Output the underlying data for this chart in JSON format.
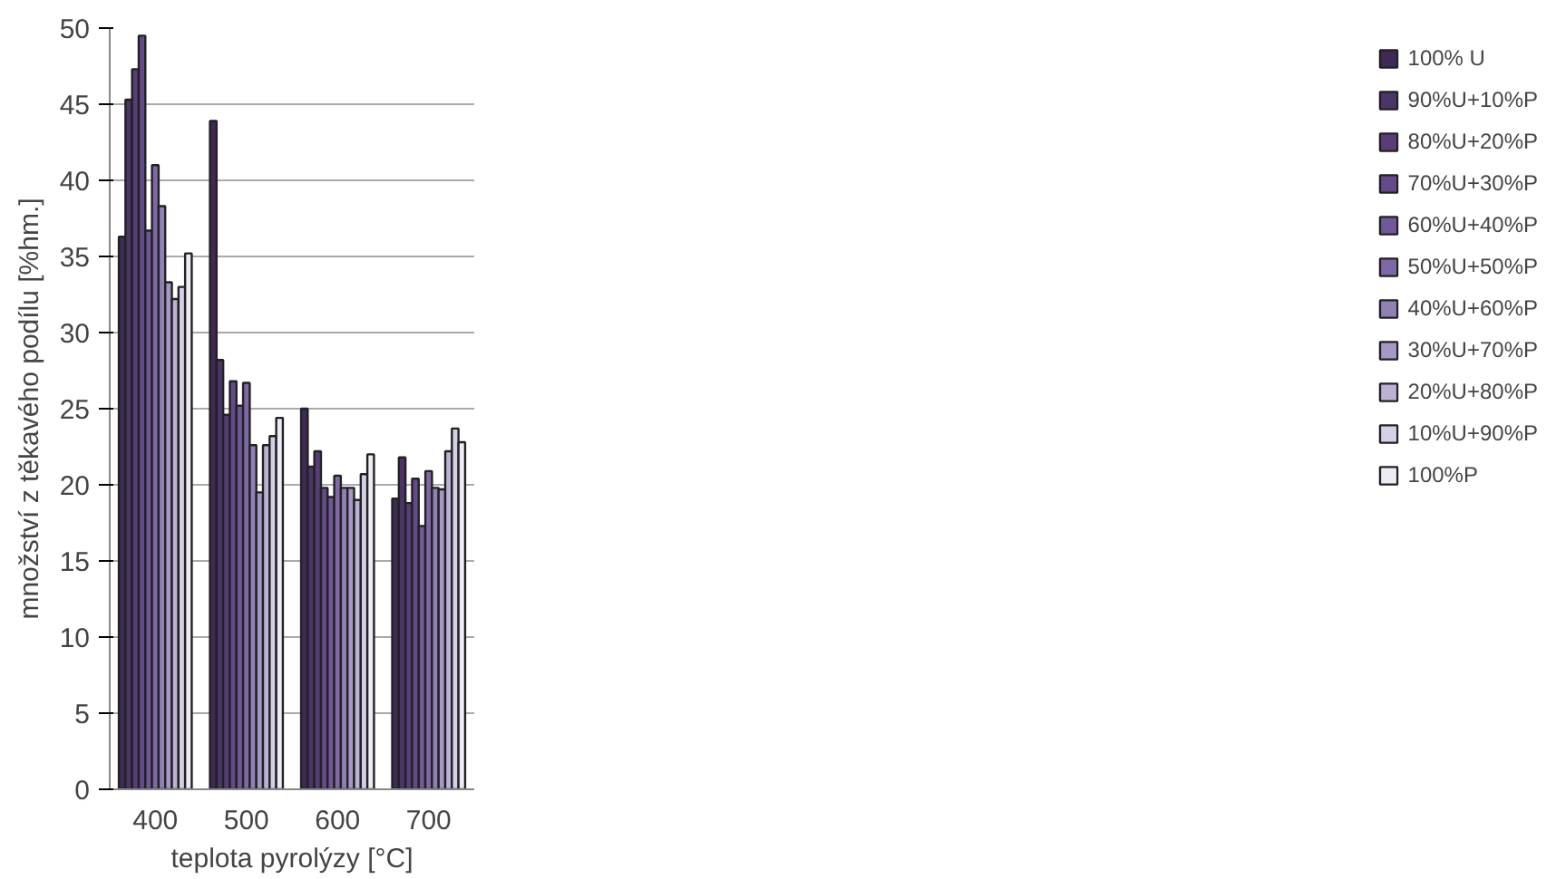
{
  "chart_data": {
    "type": "bar",
    "xlabel": "teplota pyrolýzy [°C]",
    "ylabel": "množství z těkavého podílu [%hm.]",
    "categories": [
      "400",
      "500",
      "600",
      "700"
    ],
    "ylim": [
      0,
      50
    ],
    "yticks": [
      0,
      5,
      10,
      15,
      20,
      25,
      30,
      35,
      40,
      45,
      50
    ],
    "grid": "y",
    "legend": "right",
    "series": [
      {
        "name": "100% U",
        "color": "#3e2a55",
        "values": [
          36.3,
          43.9,
          25.0,
          19.1
        ]
      },
      {
        "name": "90%U+10%P",
        "color": "#4b3468",
        "values": [
          45.3,
          28.2,
          21.2,
          21.8
        ]
      },
      {
        "name": "80%U+20%P",
        "color": "#573e79",
        "values": [
          47.3,
          24.6,
          22.2,
          18.8
        ]
      },
      {
        "name": "70%U+30%P",
        "color": "#644a8a",
        "values": [
          49.5,
          26.8,
          19.8,
          20.4
        ]
      },
      {
        "name": "60%U+40%P",
        "color": "#715898",
        "values": [
          36.7,
          25.2,
          19.2,
          17.3
        ]
      },
      {
        "name": "50%U+50%P",
        "color": "#8068a8",
        "values": [
          41.0,
          26.7,
          20.6,
          20.9
        ]
      },
      {
        "name": "40%U+60%P",
        "color": "#9080b6",
        "values": [
          38.3,
          22.6,
          19.8,
          19.8
        ]
      },
      {
        "name": "30%U+70%P",
        "color": "#a697c6",
        "values": [
          33.3,
          19.5,
          19.8,
          19.7
        ]
      },
      {
        "name": "20%U+80%P",
        "color": "#bdb2d6",
        "values": [
          32.2,
          22.6,
          19.0,
          22.2
        ]
      },
      {
        "name": "10%U+90%P",
        "color": "#d6cfe6",
        "values": [
          33.0,
          23.2,
          20.7,
          23.7
        ]
      },
      {
        "name": "100%P",
        "color": "#eeebf5",
        "values": [
          35.2,
          24.4,
          22.0,
          22.8
        ]
      }
    ]
  }
}
